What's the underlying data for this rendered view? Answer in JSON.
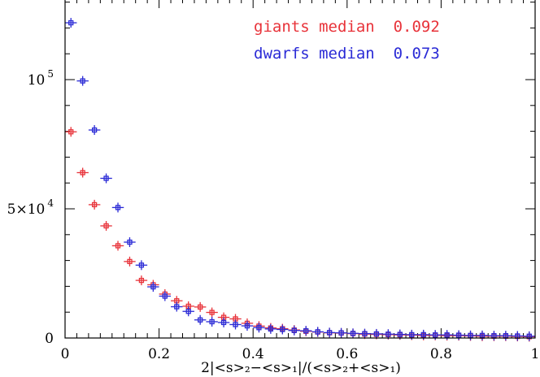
{
  "chart_data": {
    "type": "scatter",
    "title": "",
    "xlabel": "2|<s>₂−<s>₁|/(<s>₂+<s>₁)",
    "ylabel": "",
    "xlim": [
      0,
      1
    ],
    "ylim": [
      0,
      130000
    ],
    "x_ticks": [
      {
        "value": 0,
        "label": "0"
      },
      {
        "value": 0.2,
        "label": "0.2"
      },
      {
        "value": 0.4,
        "label": "0.4"
      },
      {
        "value": 0.6,
        "label": "0.6"
      },
      {
        "value": 0.8,
        "label": "0.8"
      },
      {
        "value": 1,
        "label": "1"
      }
    ],
    "y_ticks": [
      {
        "value": 0,
        "label": "0"
      },
      {
        "value": 50000,
        "label": "5×10",
        "exp": "4"
      },
      {
        "value": 100000,
        "label": "10",
        "exp": "5"
      }
    ],
    "grid": false,
    "legend_position": "top-right",
    "annotations": [
      {
        "text": "giants median  0.092",
        "color": "#e8333a"
      },
      {
        "text": "dwarfs median  0.073",
        "color": "#2b2bd6"
      }
    ],
    "series": [
      {
        "color": "#e8333a",
        "x": [
          0.0125,
          0.0375,
          0.0625,
          0.0875,
          0.1125,
          0.1375,
          0.1625,
          0.1875,
          0.2125,
          0.2375,
          0.2625,
          0.2875,
          0.3125,
          0.3375,
          0.3625,
          0.3875,
          0.4125,
          0.4375,
          0.4625,
          0.4875,
          0.5125,
          0.5375,
          0.5625,
          0.5875,
          0.6125,
          0.6375,
          0.6625,
          0.6875,
          0.7125,
          0.7375,
          0.7625,
          0.7875,
          0.8125,
          0.8375,
          0.8625,
          0.8875,
          0.9125,
          0.9375,
          0.9625,
          0.9875
        ],
        "y": [
          79800,
          64000,
          51600,
          43400,
          35700,
          29600,
          22300,
          20600,
          17000,
          14400,
          12300,
          12000,
          9900,
          8000,
          7400,
          5700,
          4600,
          3900,
          3600,
          3100,
          2600,
          2300,
          2000,
          1900,
          1700,
          1500,
          1400,
          1300,
          1200,
          1100,
          1000,
          1000,
          900,
          900,
          800,
          700,
          700,
          700,
          600,
          500
        ]
      },
      {
        "color": "#2b2bd6",
        "x": [
          0.0125,
          0.0375,
          0.0625,
          0.0875,
          0.1125,
          0.1375,
          0.1625,
          0.1875,
          0.2125,
          0.2375,
          0.2625,
          0.2875,
          0.3125,
          0.3375,
          0.3625,
          0.3875,
          0.4125,
          0.4375,
          0.4625,
          0.4875,
          0.5125,
          0.5375,
          0.5625,
          0.5875,
          0.6125,
          0.6375,
          0.6625,
          0.6875,
          0.7125,
          0.7375,
          0.7625,
          0.7875,
          0.8125,
          0.8375,
          0.8625,
          0.8875,
          0.9125,
          0.9375,
          0.9625,
          0.9875
        ],
        "y": [
          122000,
          99500,
          80500,
          61800,
          50500,
          37100,
          28200,
          19800,
          16200,
          12100,
          10300,
          7000,
          6300,
          6000,
          5200,
          4700,
          4000,
          3500,
          3300,
          2900,
          2800,
          2400,
          2100,
          2000,
          1800,
          1700,
          1600,
          1500,
          1400,
          1300,
          1300,
          1200,
          1200,
          1100,
          1000,
          1000,
          900,
          900,
          800,
          700
        ]
      }
    ]
  }
}
